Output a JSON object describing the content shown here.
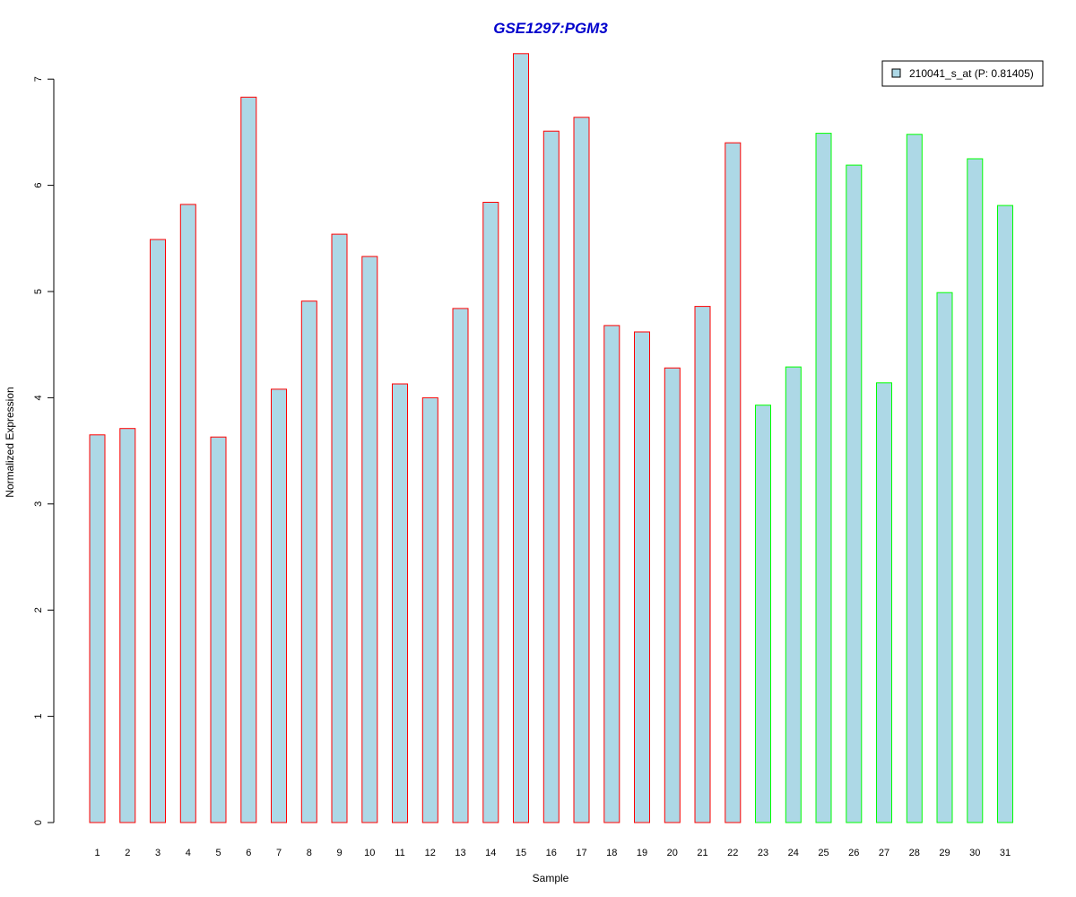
{
  "chart_data": {
    "type": "bar",
    "title": "GSE1297:PGM3",
    "xlabel": "Sample",
    "ylabel": "Normalized Expression",
    "ylim": [
      0,
      7.25
    ],
    "yticks": [
      "0",
      "1",
      "2",
      "3",
      "4",
      "5",
      "6",
      "7"
    ],
    "categories": [
      "1",
      "2",
      "3",
      "4",
      "5",
      "6",
      "7",
      "8",
      "9",
      "10",
      "11",
      "12",
      "13",
      "14",
      "15",
      "16",
      "17",
      "18",
      "19",
      "20",
      "21",
      "22",
      "23",
      "24",
      "25",
      "26",
      "27",
      "28",
      "29",
      "30",
      "31"
    ],
    "series": [
      {
        "name": "210041_s_at (P: 0.81405)",
        "values": [
          3.65,
          3.71,
          5.49,
          5.82,
          3.63,
          6.83,
          4.08,
          4.91,
          5.54,
          5.33,
          4.13,
          4.0,
          4.84,
          5.84,
          7.24,
          6.51,
          6.64,
          4.68,
          4.62,
          4.28,
          4.86,
          6.4,
          3.93,
          4.29,
          6.49,
          6.19,
          4.14,
          6.48,
          4.99,
          6.25,
          5.81
        ]
      }
    ],
    "bar_groups": [
      "red",
      "red",
      "red",
      "red",
      "red",
      "red",
      "red",
      "red",
      "red",
      "red",
      "red",
      "red",
      "red",
      "red",
      "red",
      "red",
      "red",
      "red",
      "red",
      "red",
      "red",
      "red",
      "green",
      "green",
      "green",
      "green",
      "green",
      "green",
      "green",
      "green",
      "green"
    ],
    "grid": false,
    "legend_position": "top-right"
  },
  "colors": {
    "bar_fill": "#add8e6",
    "red_border": "#ff0000",
    "green_border": "#00ff00",
    "title": "#0000cc"
  }
}
